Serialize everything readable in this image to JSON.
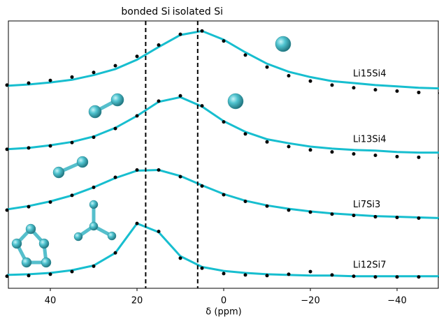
{
  "chart_data": {
    "type": "stacked-spectra",
    "xlabel": "δ (ppm)",
    "xlim": [
      50,
      -50
    ],
    "ylim": [
      0,
      4
    ],
    "xticks": [
      40,
      20,
      0,
      {
        "value": -20,
        "label": "−20"
      },
      {
        "value": -40,
        "label": "−40"
      }
    ],
    "x": [
      50,
      45,
      40,
      35,
      30,
      25,
      20,
      15,
      10,
      5,
      0,
      -5,
      -10,
      -15,
      -20,
      -25,
      -30,
      -35,
      -40,
      -45,
      -50
    ],
    "fit_color": "#17becf",
    "data_color": "#000000",
    "vlines": [
      {
        "x": 18,
        "label": "bonded Si"
      },
      {
        "x": 6,
        "label": "isolated Si"
      }
    ],
    "spectra": [
      {
        "label": "Li15Si4",
        "fit": [
          3.03,
          3.05,
          3.08,
          3.12,
          3.19,
          3.28,
          3.42,
          3.61,
          3.79,
          3.85,
          3.72,
          3.53,
          3.36,
          3.24,
          3.16,
          3.1,
          3.07,
          3.04,
          3.02,
          3.0,
          2.99
        ],
        "data": [
          3.04,
          3.07,
          3.11,
          3.16,
          3.23,
          3.33,
          3.47,
          3.64,
          3.8,
          3.85,
          3.7,
          3.49,
          3.31,
          3.18,
          3.1,
          3.04,
          3.0,
          2.97,
          2.95,
          2.93,
          2.92
        ]
      },
      {
        "label": "Li13Si4",
        "fit": [
          2.08,
          2.1,
          2.14,
          2.19,
          2.27,
          2.4,
          2.58,
          2.79,
          2.86,
          2.72,
          2.5,
          2.34,
          2.23,
          2.17,
          2.12,
          2.09,
          2.07,
          2.06,
          2.04,
          2.03,
          2.03
        ],
        "data": [
          2.08,
          2.1,
          2.13,
          2.18,
          2.26,
          2.39,
          2.58,
          2.8,
          2.88,
          2.73,
          2.49,
          2.31,
          2.19,
          2.12,
          2.07,
          2.04,
          2.01,
          1.99,
          1.97,
          1.96,
          1.95
        ]
      },
      {
        "label": "Li7Si3",
        "fit": [
          1.18,
          1.23,
          1.3,
          1.39,
          1.51,
          1.65,
          1.76,
          1.77,
          1.68,
          1.54,
          1.41,
          1.31,
          1.24,
          1.19,
          1.15,
          1.12,
          1.1,
          1.08,
          1.07,
          1.06,
          1.05
        ],
        "data": [
          1.17,
          1.22,
          1.29,
          1.39,
          1.51,
          1.66,
          1.77,
          1.77,
          1.67,
          1.53,
          1.4,
          1.3,
          1.23,
          1.17,
          1.14,
          1.11,
          1.09,
          1.07,
          1.06,
          1.05,
          1.04
        ]
      },
      {
        "label": "Li12Si7",
        "fit": [
          0.2,
          0.21,
          0.23,
          0.27,
          0.34,
          0.53,
          0.97,
          0.84,
          0.48,
          0.32,
          0.26,
          0.23,
          0.21,
          0.2,
          0.19,
          0.19,
          0.18,
          0.18,
          0.18,
          0.18,
          0.18
        ],
        "data": [
          0.18,
          0.19,
          0.21,
          0.25,
          0.33,
          0.53,
          0.97,
          0.85,
          0.45,
          0.3,
          0.22,
          0.2,
          0.19,
          0.21,
          0.25,
          0.2,
          0.18,
          0.17,
          0.17,
          0.17,
          0.17
        ]
      }
    ]
  }
}
